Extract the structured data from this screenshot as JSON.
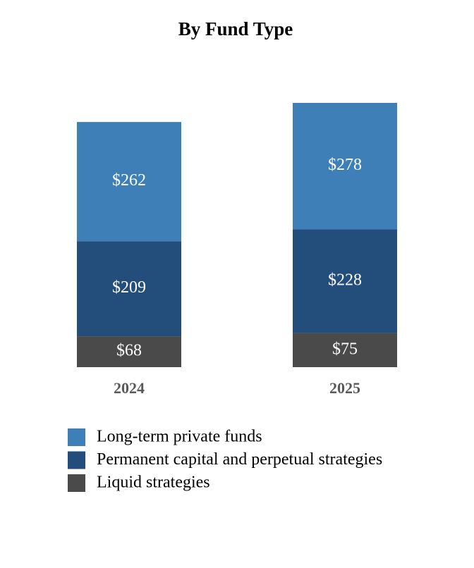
{
  "chart_data": {
    "type": "stacked-bar",
    "title": "By Fund Type",
    "categories": [
      "2024",
      "2025"
    ],
    "series": [
      {
        "name": "Long-term private funds",
        "color": "#3d7fb6",
        "values": [
          262,
          278
        ],
        "value_labels": [
          "$262",
          "$278"
        ]
      },
      {
        "name": "Permanent capital and perpetual strategies",
        "color": "#234e7c",
        "values": [
          209,
          228
        ],
        "value_labels": [
          "$209",
          "$228"
        ]
      },
      {
        "name": "Liquid strategies",
        "color": "#4a4a4a",
        "values": [
          68,
          75
        ],
        "value_labels": [
          "$68",
          "$75"
        ]
      }
    ],
    "legend": "bottom-left"
  }
}
